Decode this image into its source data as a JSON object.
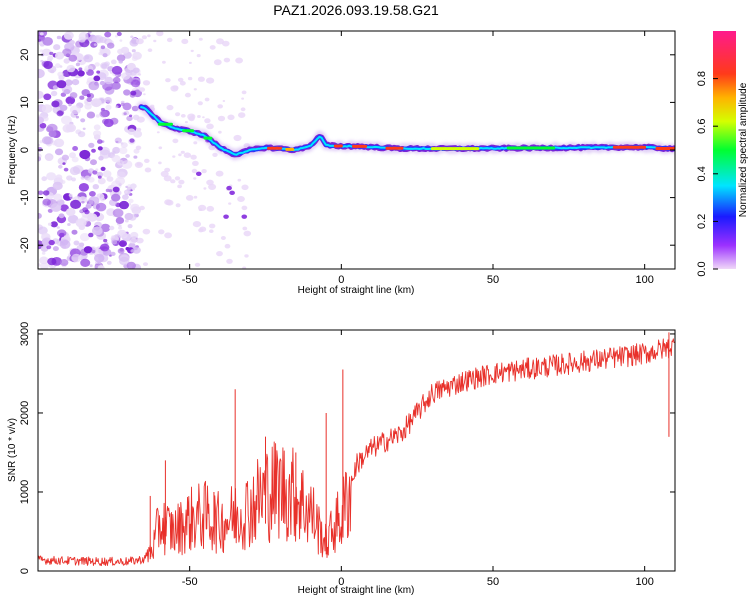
{
  "title": "PAZ1.2026.093.19.58.G21",
  "chart_data": [
    {
      "type": "heatmap",
      "name": "spectrogram",
      "xlabel": "Height of straight line (km)",
      "ylabel": "Frequency (Hz)",
      "xlim": [
        -100,
        110
      ],
      "ylim": [
        -25,
        25
      ],
      "xticks": [
        -50,
        0,
        50,
        100
      ],
      "yticks": [
        -20,
        -10,
        0,
        10,
        20
      ],
      "ridge": {
        "x": [
          -65,
          -60,
          -55,
          -50,
          -45,
          -40,
          -35,
          -30,
          -25,
          -20,
          -15,
          -10,
          -7,
          -5,
          0,
          5,
          10,
          20,
          40,
          60,
          80,
          100,
          110
        ],
        "freq": [
          9,
          6,
          4.5,
          4,
          3,
          0.5,
          -1,
          0,
          0.5,
          0.3,
          0,
          1,
          3,
          1,
          0.8,
          0.8,
          0.6,
          0.3,
          0.3,
          0.4,
          0.5,
          0.6,
          0.2
        ]
      },
      "colorbar": {
        "label": "Normalized spectral amplitude",
        "ticks": [
          0.0,
          0.2,
          0.4,
          0.6,
          0.8
        ],
        "range": [
          0,
          1
        ]
      }
    },
    {
      "type": "line",
      "name": "snr",
      "xlabel": "Height of straight line (km)",
      "ylabel": "SNR (10 * v/v)",
      "xlim": [
        -100,
        110
      ],
      "ylim": [
        0,
        3050
      ],
      "xticks": [
        -50,
        0,
        50,
        100
      ],
      "yticks": [
        0,
        1000,
        2000,
        3000
      ],
      "color": "#e8302a",
      "series": [
        {
          "name": "SNR",
          "x": [
            -100,
            -90,
            -80,
            -70,
            -65,
            -62,
            -60,
            -55,
            -50,
            -45,
            -40,
            -35,
            -30,
            -25,
            -20,
            -15,
            -10,
            -7,
            -5,
            -2,
            0,
            5,
            10,
            15,
            20,
            30,
            40,
            50,
            60,
            70,
            80,
            90,
            100,
            110
          ],
          "y": [
            140,
            130,
            120,
            120,
            150,
            300,
            600,
            500,
            650,
            700,
            600,
            700,
            800,
            1000,
            1050,
            950,
            750,
            500,
            350,
            600,
            650,
            1350,
            1550,
            1650,
            1750,
            2250,
            2400,
            2500,
            2550,
            2600,
            2650,
            2700,
            2750,
            2850
          ]
        }
      ],
      "spikes": [
        {
          "x": -63,
          "y": 950
        },
        {
          "x": -58,
          "y": 1400
        },
        {
          "x": -42,
          "y": 1000
        },
        {
          "x": -35,
          "y": 2300
        },
        {
          "x": -25,
          "y": 1700
        },
        {
          "x": -15,
          "y": 1500
        },
        {
          "x": -5,
          "y": 2000
        },
        {
          "x": 0.5,
          "y": 2550
        },
        {
          "x": 108,
          "y": 3020
        }
      ]
    }
  ]
}
